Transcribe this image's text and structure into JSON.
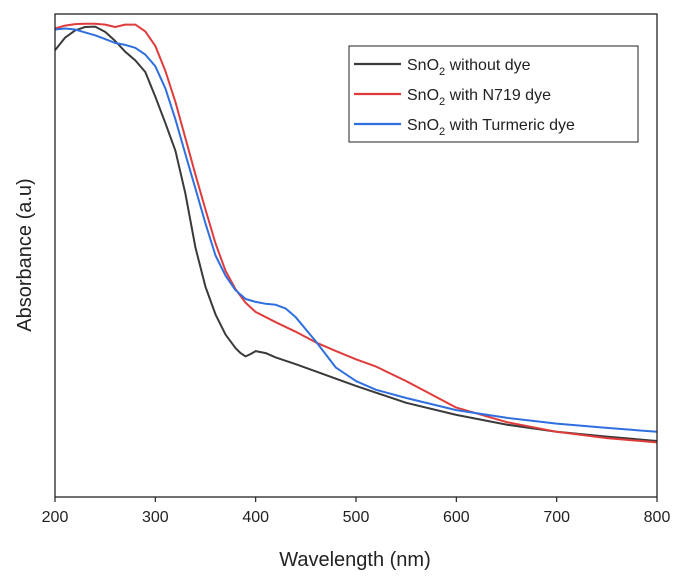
{
  "chart_data": {
    "type": "line",
    "title": "",
    "xlabel": "Wavelength (nm)",
    "ylabel": "Absorbance (a.u)",
    "xlim": [
      200,
      800
    ],
    "ylim": [
      0,
      1
    ],
    "xticks": [
      "200",
      "300",
      "400",
      "500",
      "600",
      "700",
      "800"
    ],
    "yticks_visible": false,
    "grid": false,
    "legend_position": "top-right",
    "series": [
      {
        "name_prefix": "SnO",
        "name_sub": "2",
        "name_suffix": " without dye",
        "color": "#3a3a3a",
        "x": [
          200,
          210,
          220,
          230,
          240,
          250,
          260,
          270,
          280,
          290,
          300,
          310,
          320,
          330,
          340,
          350,
          360,
          370,
          380,
          385,
          390,
          395,
          400,
          410,
          420,
          440,
          460,
          480,
          500,
          550,
          600,
          650,
          700,
          750,
          800
        ],
        "y": [
          0.925,
          0.951,
          0.966,
          0.973,
          0.974,
          0.963,
          0.944,
          0.922,
          0.904,
          0.88,
          0.829,
          0.774,
          0.717,
          0.628,
          0.516,
          0.435,
          0.378,
          0.336,
          0.308,
          0.298,
          0.291,
          0.296,
          0.302,
          0.298,
          0.289,
          0.275,
          0.26,
          0.245,
          0.23,
          0.195,
          0.17,
          0.15,
          0.135,
          0.125,
          0.116
        ]
      },
      {
        "name_prefix": "SnO",
        "name_sub": "2",
        "name_suffix": " with N719 dye",
        "color": "#e03b3b",
        "x": [
          200,
          210,
          220,
          230,
          240,
          250,
          260,
          270,
          280,
          290,
          300,
          310,
          320,
          330,
          340,
          350,
          360,
          370,
          380,
          390,
          400,
          420,
          440,
          460,
          480,
          500,
          520,
          550,
          600,
          650,
          700,
          750,
          800
        ],
        "y": [
          0.97,
          0.976,
          0.979,
          0.98,
          0.98,
          0.978,
          0.973,
          0.978,
          0.978,
          0.964,
          0.934,
          0.882,
          0.818,
          0.743,
          0.667,
          0.595,
          0.525,
          0.468,
          0.43,
          0.402,
          0.383,
          0.362,
          0.342,
          0.32,
          0.302,
          0.285,
          0.27,
          0.24,
          0.185,
          0.155,
          0.135,
          0.122,
          0.113
        ]
      },
      {
        "name_prefix": "SnO",
        "name_sub": "2",
        "name_suffix": " with Turmeric dye",
        "color": "#2f6fe0",
        "x": [
          200,
          210,
          220,
          230,
          240,
          250,
          260,
          270,
          280,
          290,
          300,
          310,
          320,
          330,
          340,
          350,
          360,
          370,
          380,
          390,
          400,
          410,
          420,
          430,
          440,
          460,
          480,
          500,
          520,
          550,
          600,
          650,
          700,
          750,
          800
        ],
        "y": [
          0.968,
          0.97,
          0.968,
          0.962,
          0.956,
          0.948,
          0.94,
          0.936,
          0.93,
          0.916,
          0.892,
          0.846,
          0.782,
          0.71,
          0.638,
          0.566,
          0.5,
          0.458,
          0.428,
          0.41,
          0.404,
          0.4,
          0.398,
          0.39,
          0.372,
          0.322,
          0.268,
          0.24,
          0.222,
          0.205,
          0.18,
          0.164,
          0.152,
          0.143,
          0.135
        ]
      }
    ]
  }
}
